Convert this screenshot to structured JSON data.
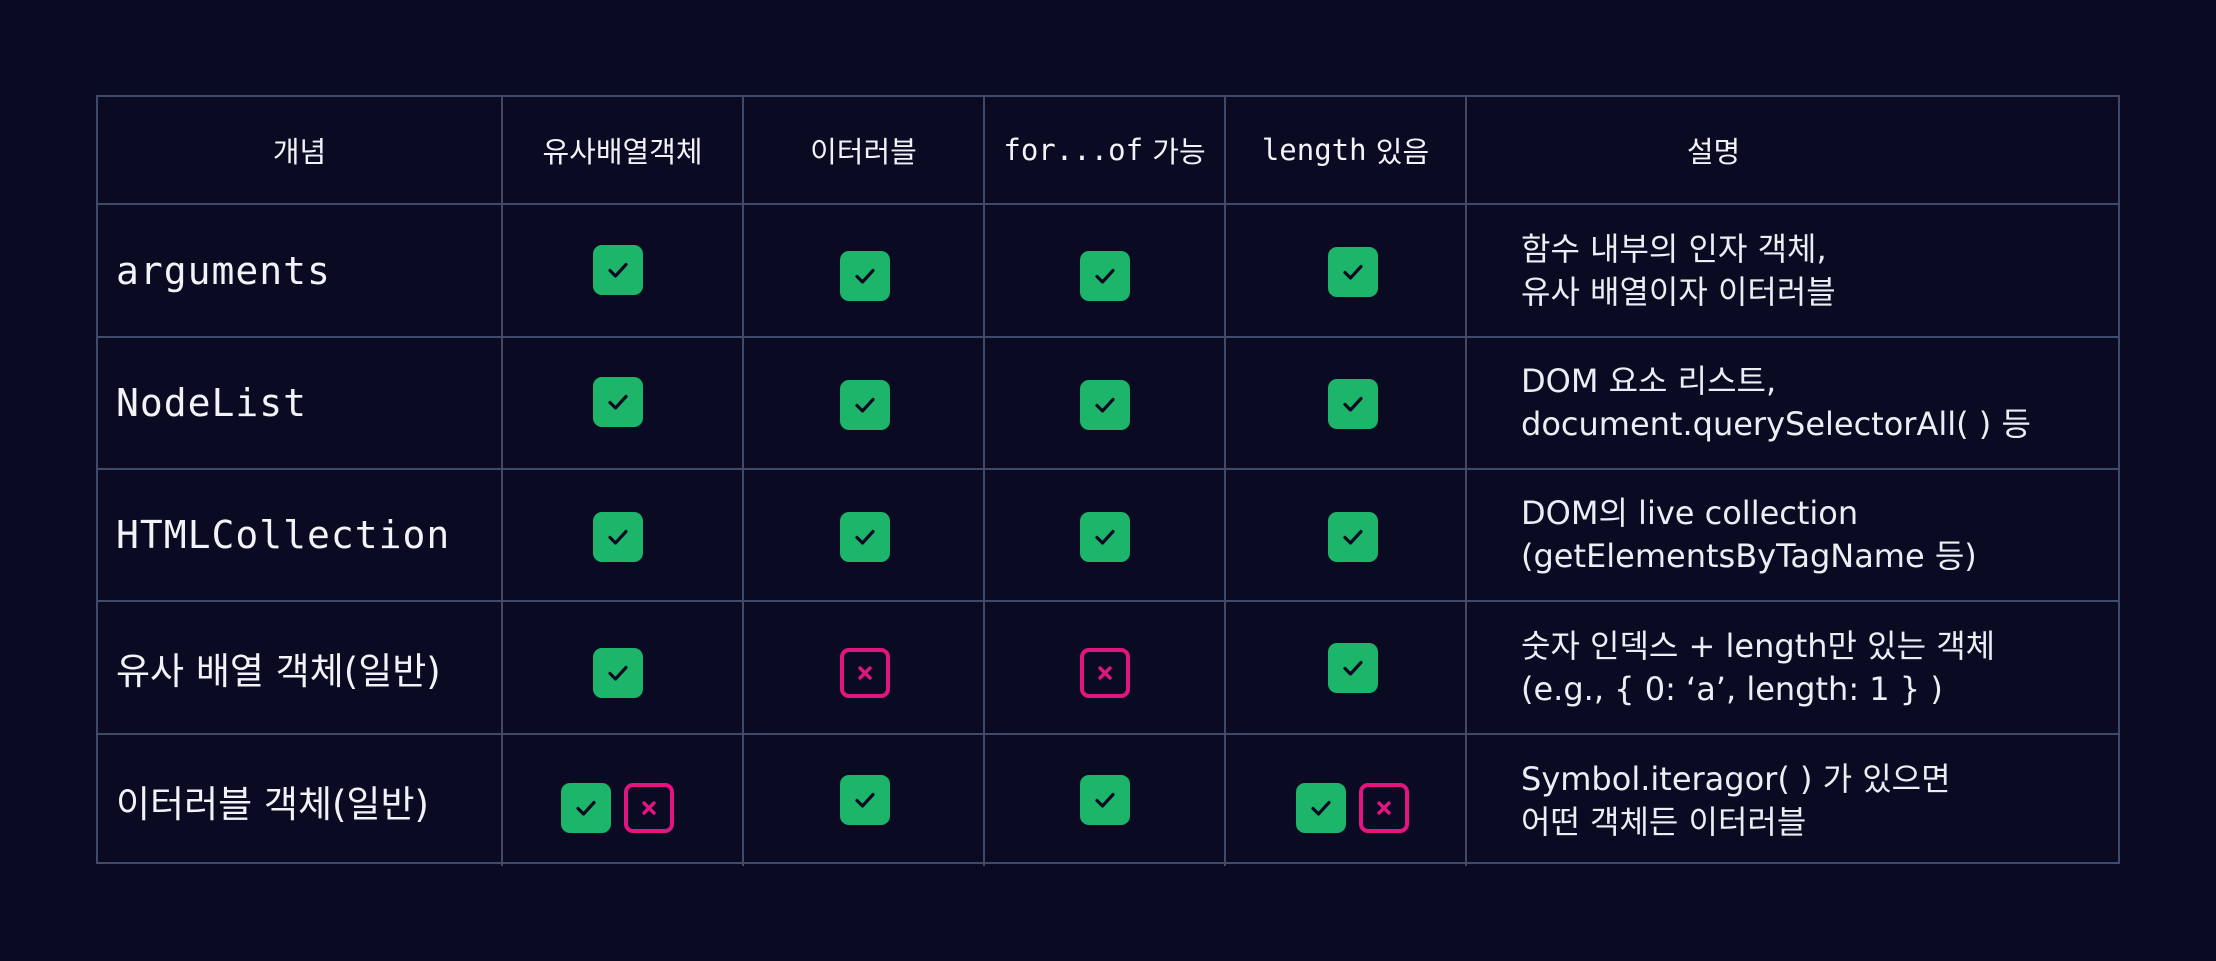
{
  "headers": {
    "concept": "개념",
    "array_like": "유사배열객체",
    "iterable": "이터러블",
    "for_of_code": "for...of",
    "for_of_text": " 가능",
    "length_code": "length",
    "length_text": " 있음",
    "description": "설명"
  },
  "rows": [
    {
      "concept": "arguments",
      "marks": {
        "array_like": [
          "check"
        ],
        "iterable": [
          "check"
        ],
        "for_of": [
          "check"
        ],
        "length": [
          "check"
        ]
      },
      "desc_line1": "함수 내부의 인자 객체,",
      "desc_line2": "유사 배열이자 이터러블"
    },
    {
      "concept": "NodeList",
      "marks": {
        "array_like": [
          "check"
        ],
        "iterable": [
          "check"
        ],
        "for_of": [
          "check"
        ],
        "length": [
          "check"
        ]
      },
      "desc_line1": "DOM 요소 리스트,",
      "desc_line2": "document.querySelectorAll( ) 등"
    },
    {
      "concept": "HTMLCollection",
      "marks": {
        "array_like": [
          "check"
        ],
        "iterable": [
          "check"
        ],
        "for_of": [
          "check"
        ],
        "length": [
          "check"
        ]
      },
      "desc_line1": "DOM의 live collection",
      "desc_line2": "(getElementsByTagName 등)"
    },
    {
      "concept": "유사 배열 객체(일반)",
      "marks": {
        "array_like": [
          "check"
        ],
        "iterable": [
          "cross"
        ],
        "for_of": [
          "cross"
        ],
        "length": [
          "check"
        ]
      },
      "desc_line1": "숫자 인덱스 + length만 있는 객체",
      "desc_line2": "(e.g., { 0: ‘a’, length: 1 } )"
    },
    {
      "concept": "이터러블 객체(일반)",
      "marks": {
        "array_like": [
          "check",
          "cross"
        ],
        "iterable": [
          "check"
        ],
        "for_of": [
          "check"
        ],
        "length": [
          "check",
          "cross"
        ]
      },
      "desc_line1": "Symbol.iteragor( ) 가 있으면",
      "desc_line2": "어떤 객체든 이터러블"
    }
  ],
  "colors": {
    "background": "#0a0b22",
    "grid_line": "#3f4a6b",
    "check": "#1db56a",
    "cross": "#e0157e"
  }
}
